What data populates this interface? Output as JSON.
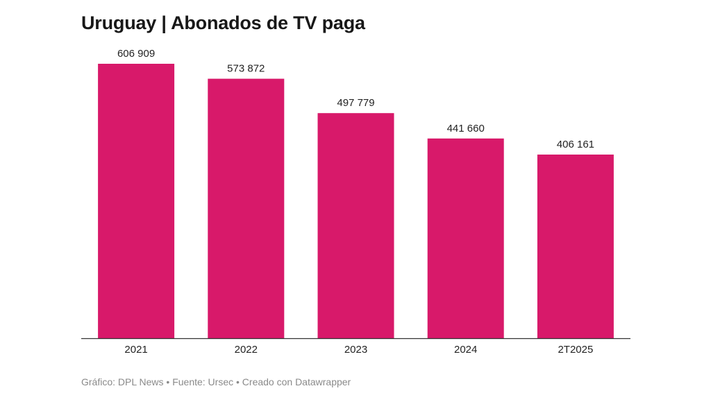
{
  "chart_data": {
    "type": "bar",
    "title": "Uruguay | Abonados de TV paga",
    "categories": [
      "2021",
      "2022",
      "2023",
      "2024",
      "2T2025"
    ],
    "values": [
      606909,
      573872,
      497779,
      441660,
      406161
    ],
    "value_labels": [
      "606 909",
      "573 872",
      "497 779",
      "441 660",
      "406 161"
    ],
    "xlabel": "",
    "ylabel": "",
    "ylim": [
      0,
      606909
    ],
    "grid": false,
    "legend": "none",
    "bar_color": "#d8196a",
    "baseline_color": "#333333"
  },
  "footer": {
    "credit": "Gráfico: DPL News • Fuente: Ursec • Creado con Datawrapper"
  }
}
